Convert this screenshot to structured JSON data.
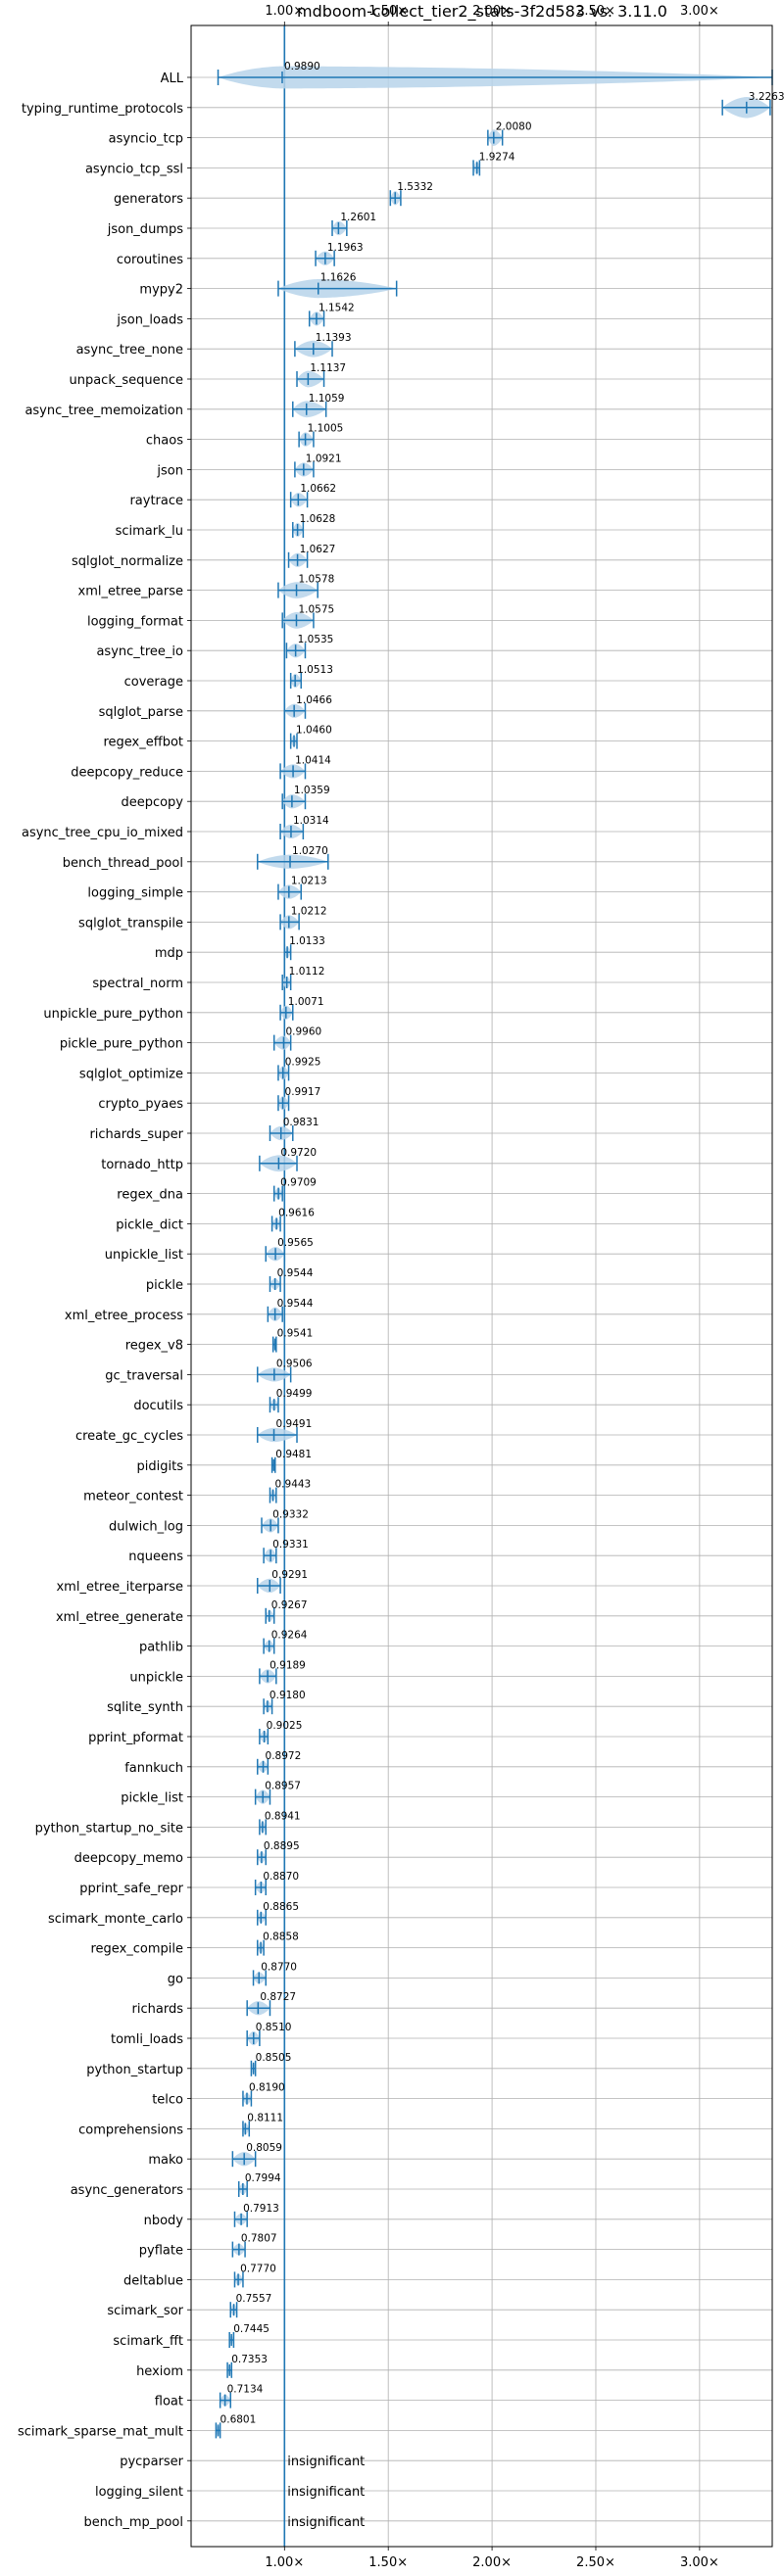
{
  "chart_data": {
    "type": "violin",
    "title": "mdboom-collect_tier2_stats-3f2d583 vs. 3.11.0",
    "xlabel": "",
    "ylabel": "",
    "xlim": [
      0.55,
      3.35
    ],
    "xticks": [
      {
        "value": 1.0,
        "label": "1.00×"
      },
      {
        "value": 1.5,
        "label": "1.50×"
      },
      {
        "value": 2.0,
        "label": "2.00×"
      },
      {
        "value": 2.5,
        "label": "2.50×"
      },
      {
        "value": 3.0,
        "label": "3.00×"
      }
    ],
    "reference_line": 1.0,
    "grid": true,
    "colors": {
      "violin": "#1f77b4",
      "violin_fill": "#b7d3ea",
      "grid": "#b0b0b0",
      "text": "#000000"
    },
    "insignificant_label": "insignificant",
    "benchmarks": [
      {
        "name": "ALL",
        "value": 0.989,
        "label": "0.9890",
        "lo": 0.68,
        "hi": 3.35,
        "w": 0.95
      },
      {
        "name": "typing_runtime_protocols",
        "value": 3.2263,
        "label": "3.2263",
        "lo": 3.11,
        "hi": 3.34,
        "w": 0.9
      },
      {
        "name": "asyncio_tcp",
        "value": 2.008,
        "label": "2.0080",
        "lo": 1.98,
        "hi": 2.05,
        "w": 0.7
      },
      {
        "name": "asyncio_tcp_ssl",
        "value": 1.9274,
        "label": "1.9274",
        "lo": 1.91,
        "hi": 1.94,
        "w": 0.6
      },
      {
        "name": "generators",
        "value": 1.5332,
        "label": "1.5332",
        "lo": 1.51,
        "hi": 1.56,
        "w": 0.6
      },
      {
        "name": "json_dumps",
        "value": 1.2601,
        "label": "1.2601",
        "lo": 1.23,
        "hi": 1.3,
        "w": 0.6
      },
      {
        "name": "coroutines",
        "value": 1.1963,
        "label": "1.1963",
        "lo": 1.15,
        "hi": 1.24,
        "w": 0.6
      },
      {
        "name": "mypy2",
        "value": 1.1626,
        "label": "1.1626",
        "lo": 0.97,
        "hi": 1.54,
        "w": 0.8
      },
      {
        "name": "json_loads",
        "value": 1.1542,
        "label": "1.1542",
        "lo": 1.12,
        "hi": 1.19,
        "w": 0.6
      },
      {
        "name": "async_tree_none",
        "value": 1.1393,
        "label": "1.1393",
        "lo": 1.05,
        "hi": 1.23,
        "w": 0.7
      },
      {
        "name": "unpack_sequence",
        "value": 1.1137,
        "label": "1.1137",
        "lo": 1.06,
        "hi": 1.19,
        "w": 0.7
      },
      {
        "name": "async_tree_memoization",
        "value": 1.1059,
        "label": "1.1059",
        "lo": 1.04,
        "hi": 1.2,
        "w": 0.7
      },
      {
        "name": "chaos",
        "value": 1.1005,
        "label": "1.1005",
        "lo": 1.07,
        "hi": 1.14,
        "w": 0.6
      },
      {
        "name": "json",
        "value": 1.0921,
        "label": "1.0921",
        "lo": 1.05,
        "hi": 1.14,
        "w": 0.6
      },
      {
        "name": "raytrace",
        "value": 1.0662,
        "label": "1.0662",
        "lo": 1.03,
        "hi": 1.11,
        "w": 0.6
      },
      {
        "name": "scimark_lu",
        "value": 1.0628,
        "label": "1.0628",
        "lo": 1.04,
        "hi": 1.09,
        "w": 0.6
      },
      {
        "name": "sqlglot_normalize",
        "value": 1.0627,
        "label": "1.0627",
        "lo": 1.02,
        "hi": 1.11,
        "w": 0.6
      },
      {
        "name": "xml_etree_parse",
        "value": 1.0578,
        "label": "1.0578",
        "lo": 0.97,
        "hi": 1.16,
        "w": 0.7
      },
      {
        "name": "logging_format",
        "value": 1.0575,
        "label": "1.0575",
        "lo": 0.99,
        "hi": 1.14,
        "w": 0.7
      },
      {
        "name": "async_tree_io",
        "value": 1.0535,
        "label": "1.0535",
        "lo": 1.01,
        "hi": 1.1,
        "w": 0.6
      },
      {
        "name": "coverage",
        "value": 1.0513,
        "label": "1.0513",
        "lo": 1.03,
        "hi": 1.08,
        "w": 0.6
      },
      {
        "name": "sqlglot_parse",
        "value": 1.0466,
        "label": "1.0466",
        "lo": 1.0,
        "hi": 1.1,
        "w": 0.6
      },
      {
        "name": "regex_effbot",
        "value": 1.046,
        "label": "1.0460",
        "lo": 1.03,
        "hi": 1.06,
        "w": 0.5
      },
      {
        "name": "deepcopy_reduce",
        "value": 1.0414,
        "label": "1.0414",
        "lo": 0.98,
        "hi": 1.1,
        "w": 0.6
      },
      {
        "name": "deepcopy",
        "value": 1.0359,
        "label": "1.0359",
        "lo": 0.99,
        "hi": 1.1,
        "w": 0.6
      },
      {
        "name": "async_tree_cpu_io_mixed",
        "value": 1.0314,
        "label": "1.0314",
        "lo": 0.98,
        "hi": 1.09,
        "w": 0.6
      },
      {
        "name": "bench_thread_pool",
        "value": 1.027,
        "label": "1.0270",
        "lo": 0.87,
        "hi": 1.21,
        "w": 0.6
      },
      {
        "name": "logging_simple",
        "value": 1.0213,
        "label": "1.0213",
        "lo": 0.97,
        "hi": 1.08,
        "w": 0.6
      },
      {
        "name": "sqlglot_transpile",
        "value": 1.0212,
        "label": "1.0212",
        "lo": 0.98,
        "hi": 1.07,
        "w": 0.6
      },
      {
        "name": "mdp",
        "value": 1.0133,
        "label": "1.0133",
        "lo": 1.0,
        "hi": 1.03,
        "w": 0.5
      },
      {
        "name": "spectral_norm",
        "value": 1.0112,
        "label": "1.0112",
        "lo": 0.99,
        "hi": 1.03,
        "w": 0.5
      },
      {
        "name": "unpickle_pure_python",
        "value": 1.0071,
        "label": "1.0071",
        "lo": 0.98,
        "hi": 1.04,
        "w": 0.6
      },
      {
        "name": "pickle_pure_python",
        "value": 0.996,
        "label": "0.9960",
        "lo": 0.95,
        "hi": 1.03,
        "w": 0.6
      },
      {
        "name": "sqlglot_optimize",
        "value": 0.9925,
        "label": "0.9925",
        "lo": 0.97,
        "hi": 1.02,
        "w": 0.6
      },
      {
        "name": "crypto_pyaes",
        "value": 0.9917,
        "label": "0.9917",
        "lo": 0.97,
        "hi": 1.02,
        "w": 0.6
      },
      {
        "name": "richards_super",
        "value": 0.9831,
        "label": "0.9831",
        "lo": 0.93,
        "hi": 1.04,
        "w": 0.6
      },
      {
        "name": "tornado_http",
        "value": 0.972,
        "label": "0.9720",
        "lo": 0.88,
        "hi": 1.06,
        "w": 0.7
      },
      {
        "name": "regex_dna",
        "value": 0.9709,
        "label": "0.9709",
        "lo": 0.95,
        "hi": 0.99,
        "w": 0.5
      },
      {
        "name": "pickle_dict",
        "value": 0.9616,
        "label": "0.9616",
        "lo": 0.94,
        "hi": 0.98,
        "w": 0.5
      },
      {
        "name": "unpickle_list",
        "value": 0.9565,
        "label": "0.9565",
        "lo": 0.91,
        "hi": 1.0,
        "w": 0.6
      },
      {
        "name": "pickle",
        "value": 0.9544,
        "label": "0.9544",
        "lo": 0.93,
        "hi": 0.98,
        "w": 0.5
      },
      {
        "name": "xml_etree_process",
        "value": 0.9544,
        "label": "0.9544",
        "lo": 0.92,
        "hi": 0.99,
        "w": 0.6
      },
      {
        "name": "regex_v8",
        "value": 0.9541,
        "label": "0.9541",
        "lo": 0.945,
        "hi": 0.96,
        "w": 0.4
      },
      {
        "name": "gc_traversal",
        "value": 0.9506,
        "label": "0.9506",
        "lo": 0.87,
        "hi": 1.03,
        "w": 0.6
      },
      {
        "name": "docutils",
        "value": 0.9499,
        "label": "0.9499",
        "lo": 0.93,
        "hi": 0.97,
        "w": 0.5
      },
      {
        "name": "create_gc_cycles",
        "value": 0.9491,
        "label": "0.9491",
        "lo": 0.87,
        "hi": 1.06,
        "w": 0.6
      },
      {
        "name": "pidigits",
        "value": 0.9481,
        "label": "0.9481",
        "lo": 0.94,
        "hi": 0.955,
        "w": 0.4
      },
      {
        "name": "meteor_contest",
        "value": 0.9443,
        "label": "0.9443",
        "lo": 0.93,
        "hi": 0.96,
        "w": 0.5
      },
      {
        "name": "dulwich_log",
        "value": 0.9332,
        "label": "0.9332",
        "lo": 0.89,
        "hi": 0.97,
        "w": 0.6
      },
      {
        "name": "nqueens",
        "value": 0.9331,
        "label": "0.9331",
        "lo": 0.9,
        "hi": 0.96,
        "w": 0.6
      },
      {
        "name": "xml_etree_iterparse",
        "value": 0.9291,
        "label": "0.9291",
        "lo": 0.87,
        "hi": 0.98,
        "w": 0.6
      },
      {
        "name": "xml_etree_generate",
        "value": 0.9267,
        "label": "0.9267",
        "lo": 0.91,
        "hi": 0.95,
        "w": 0.5
      },
      {
        "name": "pathlib",
        "value": 0.9264,
        "label": "0.9264",
        "lo": 0.9,
        "hi": 0.95,
        "w": 0.5
      },
      {
        "name": "unpickle",
        "value": 0.9189,
        "label": "0.9189",
        "lo": 0.88,
        "hi": 0.96,
        "w": 0.6
      },
      {
        "name": "sqlite_synth",
        "value": 0.918,
        "label": "0.9180",
        "lo": 0.9,
        "hi": 0.94,
        "w": 0.5
      },
      {
        "name": "pprint_pformat",
        "value": 0.9025,
        "label": "0.9025",
        "lo": 0.88,
        "hi": 0.92,
        "w": 0.5
      },
      {
        "name": "fannkuch",
        "value": 0.8972,
        "label": "0.8972",
        "lo": 0.87,
        "hi": 0.92,
        "w": 0.5
      },
      {
        "name": "pickle_list",
        "value": 0.8957,
        "label": "0.8957",
        "lo": 0.86,
        "hi": 0.93,
        "w": 0.6
      },
      {
        "name": "python_startup_no_site",
        "value": 0.8941,
        "label": "0.8941",
        "lo": 0.88,
        "hi": 0.91,
        "w": 0.5
      },
      {
        "name": "deepcopy_memo",
        "value": 0.8895,
        "label": "0.8895",
        "lo": 0.87,
        "hi": 0.91,
        "w": 0.5
      },
      {
        "name": "pprint_safe_repr",
        "value": 0.887,
        "label": "0.8870",
        "lo": 0.86,
        "hi": 0.91,
        "w": 0.5
      },
      {
        "name": "scimark_monte_carlo",
        "value": 0.8865,
        "label": "0.8865",
        "lo": 0.87,
        "hi": 0.91,
        "w": 0.5
      },
      {
        "name": "regex_compile",
        "value": 0.8858,
        "label": "0.8858",
        "lo": 0.87,
        "hi": 0.9,
        "w": 0.5
      },
      {
        "name": "go",
        "value": 0.877,
        "label": "0.8770",
        "lo": 0.85,
        "hi": 0.91,
        "w": 0.5
      },
      {
        "name": "richards",
        "value": 0.8727,
        "label": "0.8727",
        "lo": 0.82,
        "hi": 0.93,
        "w": 0.6
      },
      {
        "name": "tomli_loads",
        "value": 0.851,
        "label": "0.8510",
        "lo": 0.82,
        "hi": 0.88,
        "w": 0.6
      },
      {
        "name": "python_startup",
        "value": 0.8505,
        "label": "0.8505",
        "lo": 0.84,
        "hi": 0.86,
        "w": 0.5
      },
      {
        "name": "telco",
        "value": 0.819,
        "label": "0.8190",
        "lo": 0.8,
        "hi": 0.84,
        "w": 0.5
      },
      {
        "name": "comprehensions",
        "value": 0.8111,
        "label": "0.8111",
        "lo": 0.8,
        "hi": 0.83,
        "w": 0.5
      },
      {
        "name": "mako",
        "value": 0.8059,
        "label": "0.8059",
        "lo": 0.75,
        "hi": 0.86,
        "w": 0.6
      },
      {
        "name": "async_generators",
        "value": 0.7994,
        "label": "0.7994",
        "lo": 0.78,
        "hi": 0.82,
        "w": 0.5
      },
      {
        "name": "nbody",
        "value": 0.7913,
        "label": "0.7913",
        "lo": 0.76,
        "hi": 0.82,
        "w": 0.5
      },
      {
        "name": "pyflate",
        "value": 0.7807,
        "label": "0.7807",
        "lo": 0.75,
        "hi": 0.81,
        "w": 0.5
      },
      {
        "name": "deltablue",
        "value": 0.777,
        "label": "0.7770",
        "lo": 0.76,
        "hi": 0.8,
        "w": 0.5
      },
      {
        "name": "scimark_sor",
        "value": 0.7557,
        "label": "0.7557",
        "lo": 0.74,
        "hi": 0.77,
        "w": 0.5
      },
      {
        "name": "scimark_fft",
        "value": 0.7445,
        "label": "0.7445",
        "lo": 0.735,
        "hi": 0.755,
        "w": 0.4
      },
      {
        "name": "hexiom",
        "value": 0.7353,
        "label": "0.7353",
        "lo": 0.725,
        "hi": 0.745,
        "w": 0.5
      },
      {
        "name": "float",
        "value": 0.7134,
        "label": "0.7134",
        "lo": 0.69,
        "hi": 0.74,
        "w": 0.5
      },
      {
        "name": "scimark_sparse_mat_mult",
        "value": 0.6801,
        "label": "0.6801",
        "lo": 0.67,
        "hi": 0.69,
        "w": 0.5
      },
      {
        "name": "pycparser",
        "insignificant": true
      },
      {
        "name": "logging_silent",
        "insignificant": true
      },
      {
        "name": "bench_mp_pool",
        "insignificant": true
      }
    ]
  }
}
